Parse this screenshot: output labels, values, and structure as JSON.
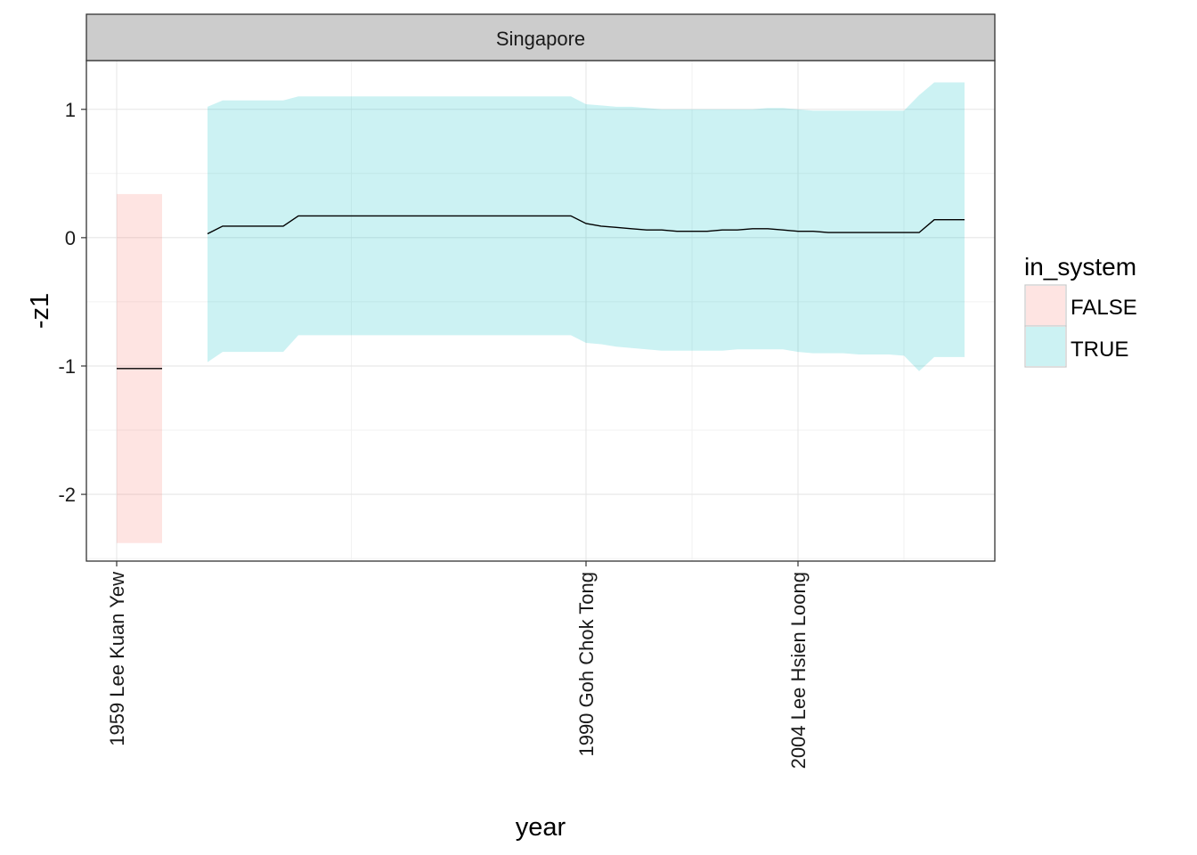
{
  "chart_data": {
    "type": "area",
    "facet_title": "Singapore",
    "xlabel": "year",
    "ylabel": "-z1",
    "xlim": [
      1957,
      2017
    ],
    "ylim": [
      -2.52,
      1.38
    ],
    "y_ticks": [
      -2,
      -1,
      0,
      1
    ],
    "x_ticks": [
      {
        "year": 1959,
        "label": "1959 Lee Kuan Yew"
      },
      {
        "year": 1990,
        "label": "1990 Goh Chok Tong"
      },
      {
        "year": 2004,
        "label": "2004 Lee Hsien Loong"
      }
    ],
    "x_minor_gridlines": [
      1974.5,
      1997,
      2011
    ],
    "grid": true,
    "legend": {
      "title": "in_system",
      "position": "right",
      "entries": [
        {
          "label": "FALSE",
          "color": "#F8766D"
        },
        {
          "label": "TRUE",
          "color": "#00BFC4"
        }
      ]
    },
    "series": [
      {
        "name": "FALSE",
        "color": "#F8766D",
        "fill_opacity": 0.2,
        "x": [
          1959,
          1962
        ],
        "y": [
          -1.02,
          -1.02
        ],
        "ymin": [
          -2.38,
          -2.38
        ],
        "ymax": [
          0.34,
          0.34
        ]
      },
      {
        "name": "TRUE",
        "color": "#00BFC4",
        "fill_opacity": 0.2,
        "x": [
          1965,
          1966,
          1968,
          1970,
          1971,
          1972,
          1974,
          1976,
          1978,
          1980,
          1982,
          1984,
          1986,
          1988,
          1989,
          1990,
          1991,
          1992,
          1993,
          1994,
          1995,
          1996,
          1997,
          1998,
          1999,
          2000,
          2001,
          2002,
          2003,
          2004,
          2005,
          2006,
          2007,
          2008,
          2009,
          2010,
          2011,
          2012,
          2013,
          2014,
          2015
        ],
        "y": [
          0.03,
          0.09,
          0.09,
          0.09,
          0.17,
          0.17,
          0.17,
          0.17,
          0.17,
          0.17,
          0.17,
          0.17,
          0.17,
          0.17,
          0.17,
          0.11,
          0.09,
          0.08,
          0.07,
          0.06,
          0.06,
          0.05,
          0.05,
          0.05,
          0.06,
          0.06,
          0.07,
          0.07,
          0.06,
          0.05,
          0.05,
          0.04,
          0.04,
          0.04,
          0.04,
          0.04,
          0.04,
          0.04,
          0.14,
          0.14,
          0.14
        ],
        "ymin": [
          -0.97,
          -0.89,
          -0.89,
          -0.89,
          -0.76,
          -0.76,
          -0.76,
          -0.76,
          -0.76,
          -0.76,
          -0.76,
          -0.76,
          -0.76,
          -0.76,
          -0.76,
          -0.82,
          -0.83,
          -0.85,
          -0.86,
          -0.87,
          -0.88,
          -0.88,
          -0.88,
          -0.88,
          -0.88,
          -0.87,
          -0.87,
          -0.87,
          -0.87,
          -0.89,
          -0.9,
          -0.9,
          -0.9,
          -0.91,
          -0.91,
          -0.91,
          -0.92,
          -1.04,
          -0.93,
          -0.93,
          -0.93
        ],
        "ymax": [
          1.02,
          1.07,
          1.07,
          1.07,
          1.1,
          1.1,
          1.1,
          1.1,
          1.1,
          1.1,
          1.1,
          1.1,
          1.1,
          1.1,
          1.1,
          1.04,
          1.03,
          1.02,
          1.02,
          1.01,
          1.0,
          1.0,
          1.0,
          1.0,
          1.0,
          1.0,
          1.0,
          1.01,
          1.01,
          1.0,
          0.99,
          0.99,
          0.99,
          0.99,
          0.99,
          0.99,
          0.99,
          1.11,
          1.21,
          1.21,
          1.21
        ]
      }
    ]
  }
}
